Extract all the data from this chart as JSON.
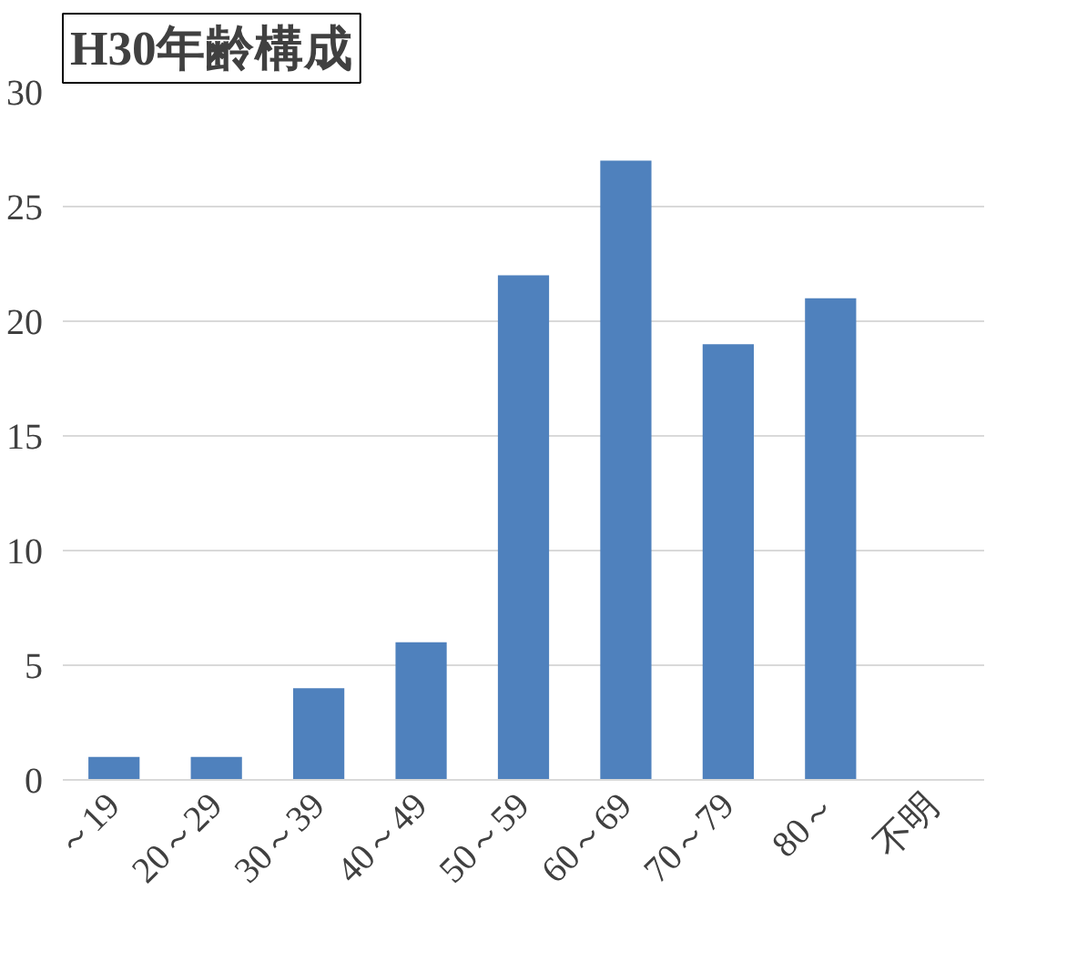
{
  "chart_data": {
    "type": "bar",
    "title": "H30年齢構成",
    "categories": [
      "～19",
      "20～29",
      "30～39",
      "40～49",
      "50～59",
      "60～69",
      "70～79",
      "80～",
      "不明"
    ],
    "values": [
      1,
      1,
      4,
      6,
      22,
      27,
      19,
      21,
      0
    ],
    "color": "#4f81bd",
    "ylim": [
      0,
      30
    ],
    "yticks": [
      0,
      5,
      10,
      15,
      20,
      25,
      30
    ],
    "grid": "y"
  }
}
